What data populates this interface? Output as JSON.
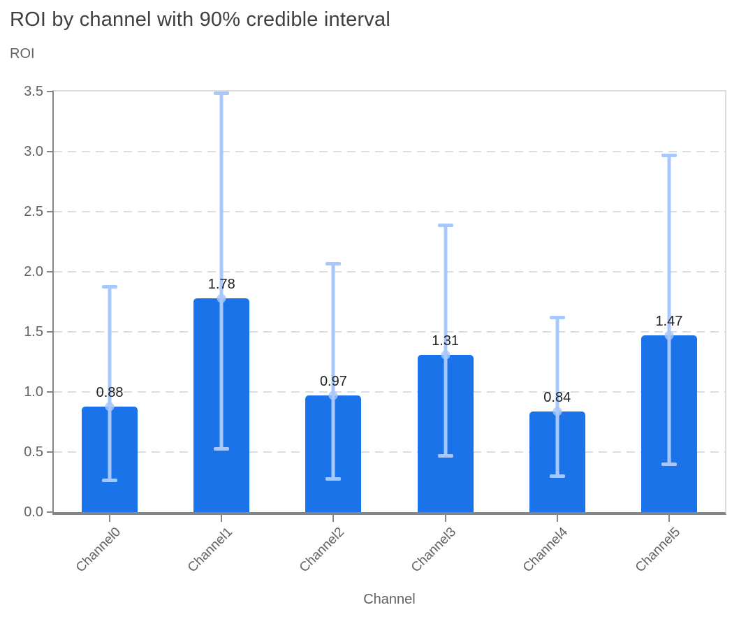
{
  "header": {
    "title": "ROI by channel with 90% credible interval"
  },
  "chart_data": {
    "type": "bar",
    "title": "ROI by channel with 90% credible interval",
    "xlabel": "Channel",
    "ylabel": "ROI",
    "categories": [
      "Channel0",
      "Channel1",
      "Channel2",
      "Channel3",
      "Channel4",
      "Channel5"
    ],
    "series": [
      {
        "name": "ROI mean",
        "values": [
          0.88,
          1.78,
          0.97,
          1.31,
          0.84,
          1.47
        ]
      },
      {
        "name": "90% credible interval lower",
        "values": [
          0.27,
          0.53,
          0.28,
          0.47,
          0.3,
          0.4
        ]
      },
      {
        "name": "90% credible interval upper",
        "values": [
          1.88,
          3.49,
          2.07,
          2.39,
          1.62,
          2.97
        ]
      }
    ],
    "value_labels": [
      "0.88",
      "1.78",
      "0.97",
      "1.31",
      "0.84",
      "1.47"
    ],
    "ylim": [
      0,
      3.5
    ],
    "ytick_step": 0.5,
    "ytick_labels": [
      "0.0",
      "0.5",
      "1.0",
      "1.5",
      "2.0",
      "2.5",
      "3.0",
      "3.5"
    ],
    "grid": "horizontal dashed",
    "legend": "none"
  },
  "colors": {
    "bar": "#1a73e8",
    "error_bar": "#a8c7fa",
    "mean_marker": "rgba(168,199,250,0.8)",
    "grid": "#dadce0",
    "axis": "#80868b",
    "title_text": "#3c4043",
    "muted_text": "#5f6368",
    "value_text": "#202124"
  }
}
